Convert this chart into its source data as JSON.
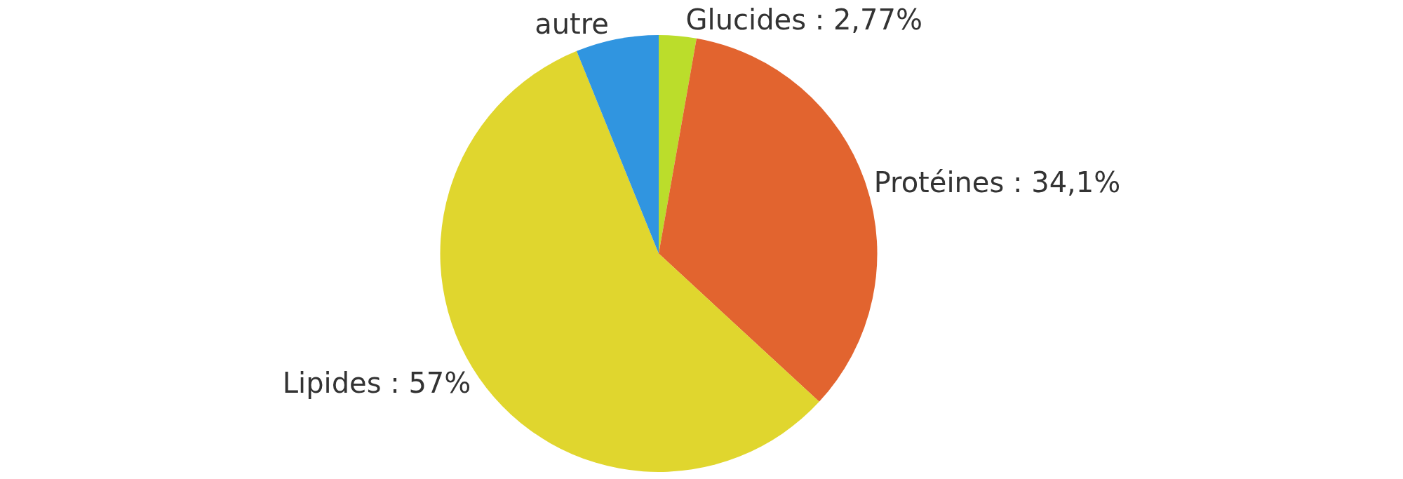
{
  "chart_data": {
    "type": "pie",
    "categories": [
      "Glucides",
      "Protéines",
      "Lipides",
      "autre"
    ],
    "values": [
      2.77,
      34.1,
      57,
      6.13
    ],
    "colors": [
      "#bbdd2b",
      "#e2642f",
      "#e0d62e",
      "#3095e0"
    ],
    "value_labels": [
      "2,77%",
      "34,1%",
      "57%",
      null
    ],
    "legend": false
  }
}
